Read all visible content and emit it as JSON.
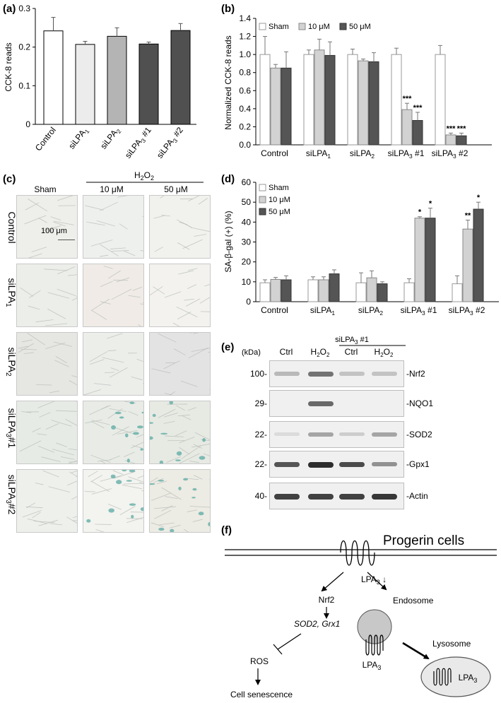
{
  "figure": {
    "panel_letters": [
      "(a)",
      "(b)",
      "(c)",
      "(d)",
      "(e)",
      "(f)"
    ]
  },
  "panel_a": {
    "ylabel": "CCK-8 reads",
    "yticks": [
      "0",
      "0.1",
      "0.2",
      "0.3"
    ],
    "categories": [
      "Control",
      "siLPA1",
      "siLPA2",
      "siLPA3 #1",
      "siLPA3 #2"
    ],
    "colors": [
      "#ffffff",
      "#ececec",
      "#b4b4b4",
      "#505050",
      "#505050"
    ]
  },
  "panel_b": {
    "ylabel": "Normalized CCK-8 reads",
    "yticks": [
      "0.0",
      "0.2",
      "0.4",
      "0.6",
      "0.8",
      "1.0",
      "1.2",
      "1.4"
    ],
    "legend": [
      "Sham",
      "10 μM",
      "50 μM"
    ],
    "categories": [
      "Control",
      "siLPA1",
      "siLPA2",
      "siLPA3 #1",
      "siLPA3 #2"
    ],
    "significance": [
      "***",
      "***",
      "***",
      "***"
    ]
  },
  "panel_c": {
    "treatment_label": "H2O2",
    "columns": [
      "Sham",
      "10 μM",
      "50 μM"
    ],
    "rows": [
      "Control",
      "siLPA1",
      "siLPA2",
      "siLPA3#1",
      "siLPA3#2"
    ],
    "scale_bar": "100 μm"
  },
  "panel_d": {
    "ylabel": "SA-β-gal (+) (%)",
    "yticks": [
      "0",
      "10",
      "20",
      "30",
      "40",
      "50",
      "60"
    ],
    "legend": [
      "Sham",
      "10 μM",
      "50 μM"
    ],
    "categories": [
      "Control",
      "siLPA1",
      "siLPA2",
      "siLPA3 #1",
      "siLPA3 #2"
    ],
    "significance": [
      "*",
      "*",
      "**",
      "*"
    ]
  },
  "panel_e": {
    "kda_label": "(kDa)",
    "group_label": "siLPA3 #1",
    "lanes": [
      "Ctrl",
      "H2O2",
      "Ctrl",
      "H2O2"
    ],
    "blots": [
      {
        "mw": "100-",
        "name": "-Nrf2"
      },
      {
        "mw": "29-",
        "name": "-NQO1"
      },
      {
        "mw": "22-",
        "name": "-SOD2"
      },
      {
        "mw": "22-",
        "name": "-Gpx1"
      },
      {
        "mw": "40-",
        "name": "-Actin"
      }
    ]
  },
  "panel_f": {
    "title": "Progerin cells",
    "lpa3_down": "LPA3 ↓",
    "nrf2": "Nrf2",
    "targets": "SOD2, Grx1",
    "ros": "ROS",
    "senescence": "Cell senescence",
    "endosome": "Endosome",
    "lysosome": "Lysosome",
    "lpa3": "LPA3"
  },
  "chart_data": [
    {
      "type": "bar",
      "panel": "(a)",
      "categories": [
        "Control",
        "siLPA1",
        "siLPA2",
        "siLPA3 #1",
        "siLPA3 #2"
      ],
      "values": [
        0.242,
        0.207,
        0.228,
        0.208,
        0.243
      ],
      "errors": [
        0.035,
        0.008,
        0.022,
        0.005,
        0.018
      ],
      "ylabel": "CCK-8 reads",
      "ylim": [
        0,
        0.3
      ]
    },
    {
      "type": "bar",
      "panel": "(b)",
      "categories": [
        "Control",
        "siLPA1",
        "siLPA2",
        "siLPA3 #1",
        "siLPA3 #2"
      ],
      "series": [
        {
          "name": "Sham",
          "values": [
            1.0,
            1.0,
            1.0,
            1.0,
            1.0
          ],
          "errors": [
            0.2,
            0.05,
            0.06,
            0.07,
            0.1
          ]
        },
        {
          "name": "10 μM",
          "values": [
            0.85,
            1.05,
            0.93,
            0.39,
            0.11
          ],
          "errors": [
            0.04,
            0.12,
            0.02,
            0.07,
            0.02
          ]
        },
        {
          "name": "50 μM",
          "values": [
            0.85,
            0.99,
            0.92,
            0.27,
            0.1
          ],
          "errors": [
            0.18,
            0.15,
            0.1,
            0.09,
            0.03
          ]
        }
      ],
      "ylabel": "Normalized CCK-8 reads",
      "ylim": [
        0,
        1.4
      ]
    },
    {
      "type": "bar",
      "panel": "(d)",
      "categories": [
        "Control",
        "siLPA1",
        "siLPA2",
        "siLPA3 #1",
        "siLPA3 #2"
      ],
      "series": [
        {
          "name": "Sham",
          "values": [
            9.5,
            11.0,
            9.5,
            9.5,
            9.0
          ],
          "errors": [
            1.5,
            1.5,
            5.0,
            2.0,
            4.0
          ]
        },
        {
          "name": "10 μM",
          "values": [
            11.2,
            11.0,
            12.0,
            42.0,
            36.5
          ],
          "errors": [
            1.0,
            1.5,
            3.5,
            0.7,
            4.5
          ]
        },
        {
          "name": "50 μM",
          "values": [
            11.0,
            14.0,
            9.0,
            42.0,
            46.5
          ],
          "errors": [
            2.0,
            2.0,
            1.0,
            5.0,
            3.5
          ]
        }
      ],
      "ylabel": "SA-β-gal (+) (%)",
      "ylim": [
        0,
        60
      ]
    }
  ]
}
